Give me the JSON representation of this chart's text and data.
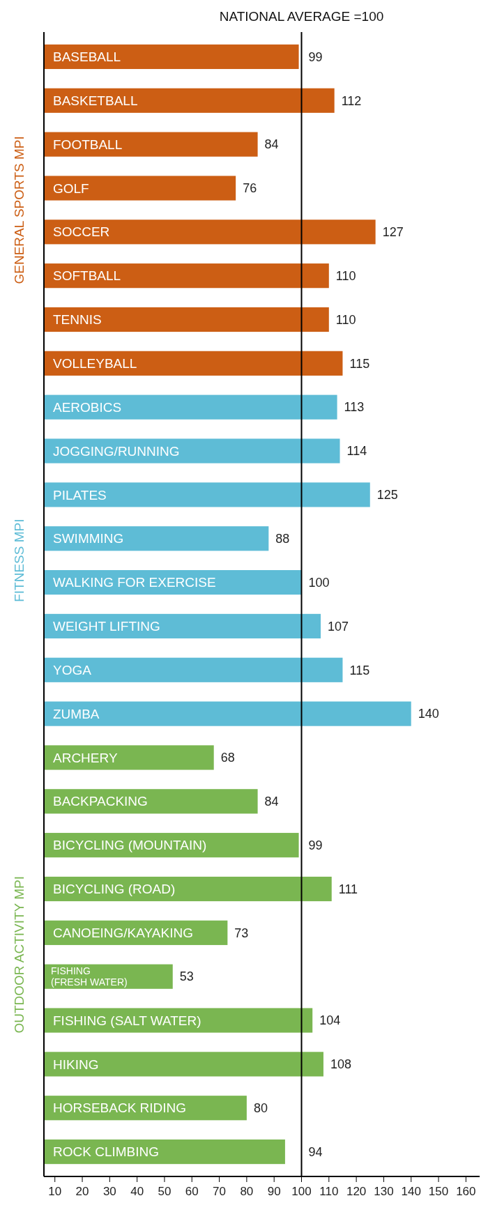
{
  "chart_data": {
    "type": "bar",
    "orientation": "horizontal",
    "categories": [
      "BASEBALL",
      "BASKETBALL",
      "FOOTBALL",
      "GOLF",
      "SOCCER",
      "SOFTBALL",
      "TENNIS",
      "VOLLEYBALL",
      "AEROBICS",
      "JOGGING/RUNNING",
      "PILATES",
      "SWIMMING",
      "WALKING FOR EXERCISE",
      "WEIGHT LIFTING",
      "YOGA",
      "ZUMBA",
      "ARCHERY",
      "BACKPACKING",
      "BICYCLING (MOUNTAIN)",
      "BICYCLING (ROAD)",
      "CANOEING/KAYAKING",
      "FISHING (FRESH WATER)",
      "FISHING (SALT WATER)",
      "HIKING",
      "HORSEBACK RIDING",
      "ROCK CLIMBING"
    ],
    "series": [
      {
        "name": "GENERAL SPORTS MPI",
        "color": "#cc5e14",
        "values": [
          99,
          112,
          84,
          76,
          127,
          110,
          110,
          115,
          null,
          null,
          null,
          null,
          null,
          null,
          null,
          null,
          null,
          null,
          null,
          null,
          null,
          null,
          null,
          null,
          null,
          null
        ]
      },
      {
        "name": "FITNESS MPI",
        "color": "#5ebcd6",
        "values": [
          null,
          null,
          null,
          null,
          null,
          null,
          null,
          null,
          113,
          114,
          125,
          88,
          100,
          107,
          115,
          140,
          null,
          null,
          null,
          null,
          null,
          null,
          null,
          null,
          null,
          null
        ]
      },
      {
        "name": "OUTDOOR ACTIVITY MPI",
        "color": "#7ab651",
        "values": [
          null,
          null,
          null,
          null,
          null,
          null,
          null,
          null,
          null,
          null,
          null,
          null,
          null,
          null,
          null,
          null,
          68,
          84,
          99,
          111,
          73,
          53,
          104,
          108,
          80,
          94
        ]
      }
    ],
    "xlim": [
      6,
      165
    ],
    "xticks": [
      10,
      20,
      30,
      40,
      50,
      60,
      70,
      80,
      90,
      100,
      110,
      120,
      130,
      140,
      150,
      160
    ],
    "ref_lines": [
      {
        "axis": "x",
        "value": 100,
        "label": "NATIONAL AVERAGE =100",
        "color": "#000000"
      }
    ],
    "data_labels": true,
    "grid": false
  }
}
